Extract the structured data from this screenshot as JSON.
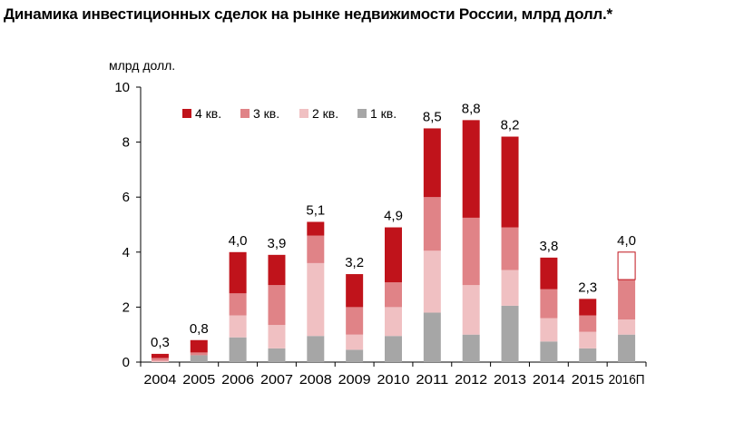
{
  "chart_data": {
    "type": "bar",
    "stacked": true,
    "title": "Динамика инвестиционных сделок на рынке недвижимости России, млрд долл.*",
    "ylabel": "млрд долл.",
    "xlabel": "",
    "ylim": [
      0,
      10
    ],
    "yticks": [
      0,
      2,
      4,
      6,
      8,
      10
    ],
    "grid": false,
    "legend_position": "top-left inside",
    "categories": [
      "2004",
      "2005",
      "2006",
      "2007",
      "2008",
      "2009",
      "2010",
      "2011",
      "2012",
      "2013",
      "2014",
      "2015",
      "2016П"
    ],
    "series": [
      {
        "name": "1 кв.",
        "color": "#a6a6a6",
        "values": [
          0.0,
          0.25,
          0.9,
          0.5,
          0.95,
          0.45,
          0.95,
          1.8,
          1.0,
          2.05,
          0.75,
          0.5,
          1.0
        ]
      },
      {
        "name": "2 кв.",
        "color": "#f0c0c2",
        "values": [
          0.05,
          0.0,
          0.8,
          0.85,
          2.65,
          0.55,
          1.05,
          2.25,
          1.8,
          1.3,
          0.85,
          0.6,
          0.55
        ]
      },
      {
        "name": "3 кв.",
        "color": "#e08387",
        "values": [
          0.1,
          0.1,
          0.8,
          1.45,
          1.0,
          1.0,
          0.9,
          1.95,
          2.45,
          1.55,
          1.05,
          0.6,
          1.45
        ]
      },
      {
        "name": "4 кв.",
        "color": "#c0131b",
        "values": [
          0.15,
          0.45,
          1.5,
          1.1,
          0.5,
          1.2,
          2.0,
          2.5,
          3.55,
          3.3,
          1.15,
          0.6,
          1.0
        ]
      }
    ],
    "forecast_category": "2016П",
    "totals": [
      "0,3",
      "0,8",
      "4,0",
      "3,9",
      "5,1",
      "3,2",
      "4,9",
      "8,5",
      "8,8",
      "8,2",
      "3,8",
      "2,3",
      "4,0"
    ]
  }
}
